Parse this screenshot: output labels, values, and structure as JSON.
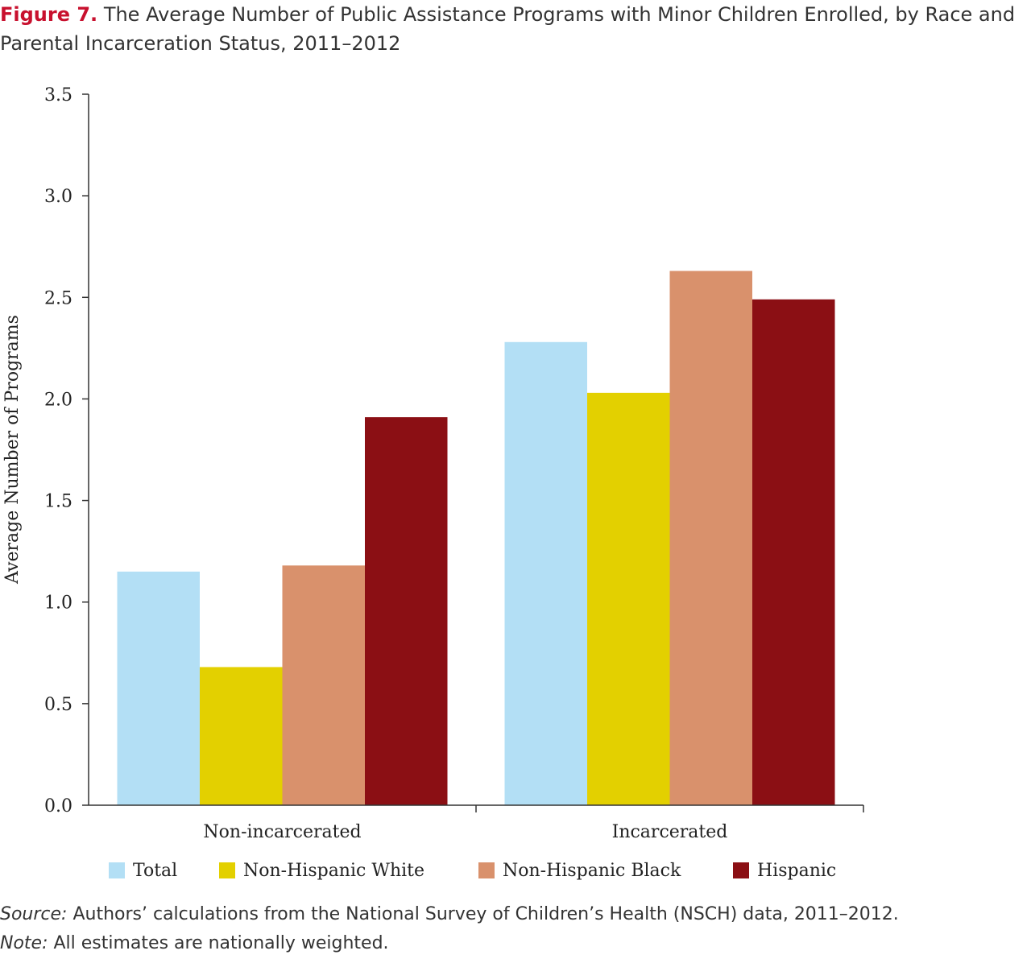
{
  "figure": {
    "label": "Figure 7.",
    "title": "The Average Number of Public Assistance Programs with Minor Children Enrolled, by Race and Parental Incarceration Status, 2011–2012"
  },
  "chart_data": {
    "type": "bar",
    "categories": [
      "Non-incarcerated",
      "Incarcerated"
    ],
    "series": [
      {
        "name": "Total",
        "color": "#b3dff5",
        "values": [
          1.15,
          2.28
        ]
      },
      {
        "name": "Non-Hispanic White",
        "color": "#e3d000",
        "values": [
          0.68,
          2.03
        ]
      },
      {
        "name": "Non-Hispanic Black",
        "color": "#d9916c",
        "values": [
          1.18,
          2.63
        ]
      },
      {
        "name": "Hispanic",
        "color": "#8b0f14",
        "values": [
          1.91,
          2.49
        ]
      }
    ],
    "ylabel": "Average Number of Programs",
    "xlabel": "",
    "ylim": [
      0,
      3.5
    ],
    "yticks": [
      "0.0",
      "0.5",
      "1.0",
      "1.5",
      "2.0",
      "2.5",
      "3.0",
      "3.5"
    ],
    "grid": false,
    "legend_position": "bottom"
  },
  "footer": {
    "source_label": "Source:",
    "source_text": " Authors’ calculations from the National Survey of Children’s Health (NSCH) data, 2011–2012.",
    "note_label": "Note:",
    "note_text": " All estimates are nationally weighted."
  }
}
